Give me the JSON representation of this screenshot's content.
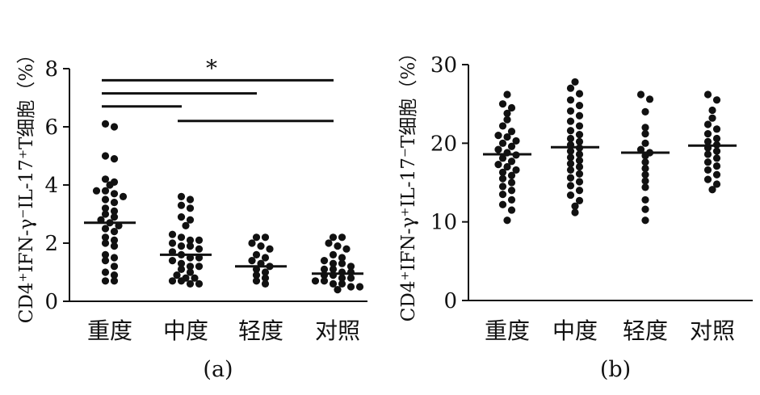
{
  "chart_data": [
    {
      "type": "scatter",
      "panel_label": "(a)",
      "ylabel": "CD4⁺IFN-γ⁻IL-17⁺T细胞（%）",
      "categories": [
        "重度",
        "中度",
        "轻度",
        "对照"
      ],
      "ylim": [
        0,
        8
      ],
      "yticks": [
        0,
        2,
        4,
        6,
        8
      ],
      "means": [
        2.7,
        1.6,
        1.2,
        0.95
      ],
      "series": [
        {
          "values": [
            6.1,
            6.0,
            5.0,
            4.9,
            4.2,
            4.1,
            4.0,
            3.8,
            3.8,
            3.7,
            3.6,
            3.5,
            3.4,
            3.2,
            3.1,
            3.0,
            2.9,
            2.8,
            2.7,
            2.6,
            2.5,
            2.4,
            2.2,
            2.1,
            2.0,
            1.9,
            1.6,
            1.5,
            1.4,
            1.2,
            1.0,
            0.9,
            0.7,
            0.7
          ]
        },
        {
          "values": [
            3.6,
            3.5,
            3.3,
            3.2,
            2.9,
            2.8,
            2.6,
            2.3,
            2.2,
            2.1,
            2.1,
            2.0,
            1.9,
            1.9,
            1.8,
            1.7,
            1.6,
            1.5,
            1.5,
            1.4,
            1.3,
            1.2,
            1.2,
            1.1,
            1.0,
            0.9,
            0.8,
            0.8,
            0.7,
            0.7,
            0.6,
            0.6
          ]
        },
        {
          "values": [
            2.2,
            2.2,
            2.0,
            1.9,
            1.8,
            1.6,
            1.5,
            1.4,
            1.3,
            1.2,
            1.1,
            1.0,
            0.9,
            0.8,
            0.7,
            0.6
          ]
        },
        {
          "values": [
            2.2,
            2.2,
            2.0,
            1.9,
            1.8,
            1.6,
            1.5,
            1.4,
            1.3,
            1.3,
            1.2,
            1.1,
            1.1,
            1.0,
            1.0,
            0.9,
            0.9,
            0.8,
            0.8,
            0.7,
            0.7,
            0.6,
            0.6,
            0.5,
            0.5,
            0.4
          ]
        }
      ],
      "significance": {
        "label": "*",
        "bars": [
          {
            "from": 0,
            "to": 3,
            "y": 7.6
          },
          {
            "from": 0,
            "to": 2,
            "y": 7.15
          },
          {
            "from": 0,
            "to": 1,
            "y": 6.7
          },
          {
            "from": 1,
            "to": 3,
            "y": 6.2
          }
        ]
      }
    },
    {
      "type": "scatter",
      "panel_label": "(b)",
      "ylabel": "CD4⁺IFN-γ⁺IL-17⁻T细胞（%）",
      "categories": [
        "重度",
        "中度",
        "轻度",
        "对照"
      ],
      "ylim": [
        0,
        30
      ],
      "yticks": [
        0,
        10,
        20,
        30
      ],
      "means": [
        18.6,
        19.5,
        18.8,
        19.7
      ],
      "series": [
        {
          "values": [
            26.2,
            25.0,
            24.5,
            23.8,
            23.0,
            22.2,
            21.5,
            21.0,
            20.8,
            20.3,
            20.0,
            19.6,
            19.2,
            18.8,
            18.5,
            18.1,
            17.7,
            17.3,
            17.0,
            16.6,
            16.3,
            15.9,
            15.5,
            15.0,
            14.5,
            14.0,
            13.5,
            12.8,
            12.2,
            11.5,
            10.2
          ]
        },
        {
          "values": [
            27.8,
            27.0,
            26.3,
            25.5,
            24.8,
            24.1,
            23.5,
            22.8,
            22.2,
            21.6,
            21.1,
            20.6,
            20.2,
            19.8,
            19.4,
            19.0,
            18.6,
            18.2,
            17.8,
            17.4,
            17.0,
            16.6,
            16.1,
            15.6,
            15.1,
            14.6,
            14.0,
            13.4,
            12.7,
            12.0,
            11.2
          ]
        },
        {
          "values": [
            26.2,
            25.6,
            24.0,
            22.0,
            21.2,
            20.0,
            19.2,
            18.8,
            18.4,
            17.6,
            16.8,
            16.0,
            15.2,
            14.4,
            12.8,
            11.6,
            10.2
          ]
        },
        {
          "values": [
            26.2,
            25.5,
            24.2,
            23.2,
            22.4,
            21.8,
            21.2,
            20.6,
            20.2,
            19.8,
            19.4,
            19.0,
            18.6,
            18.1,
            17.6,
            17.1,
            16.6,
            16.0,
            15.4,
            14.8,
            14.1
          ]
        }
      ]
    }
  ]
}
